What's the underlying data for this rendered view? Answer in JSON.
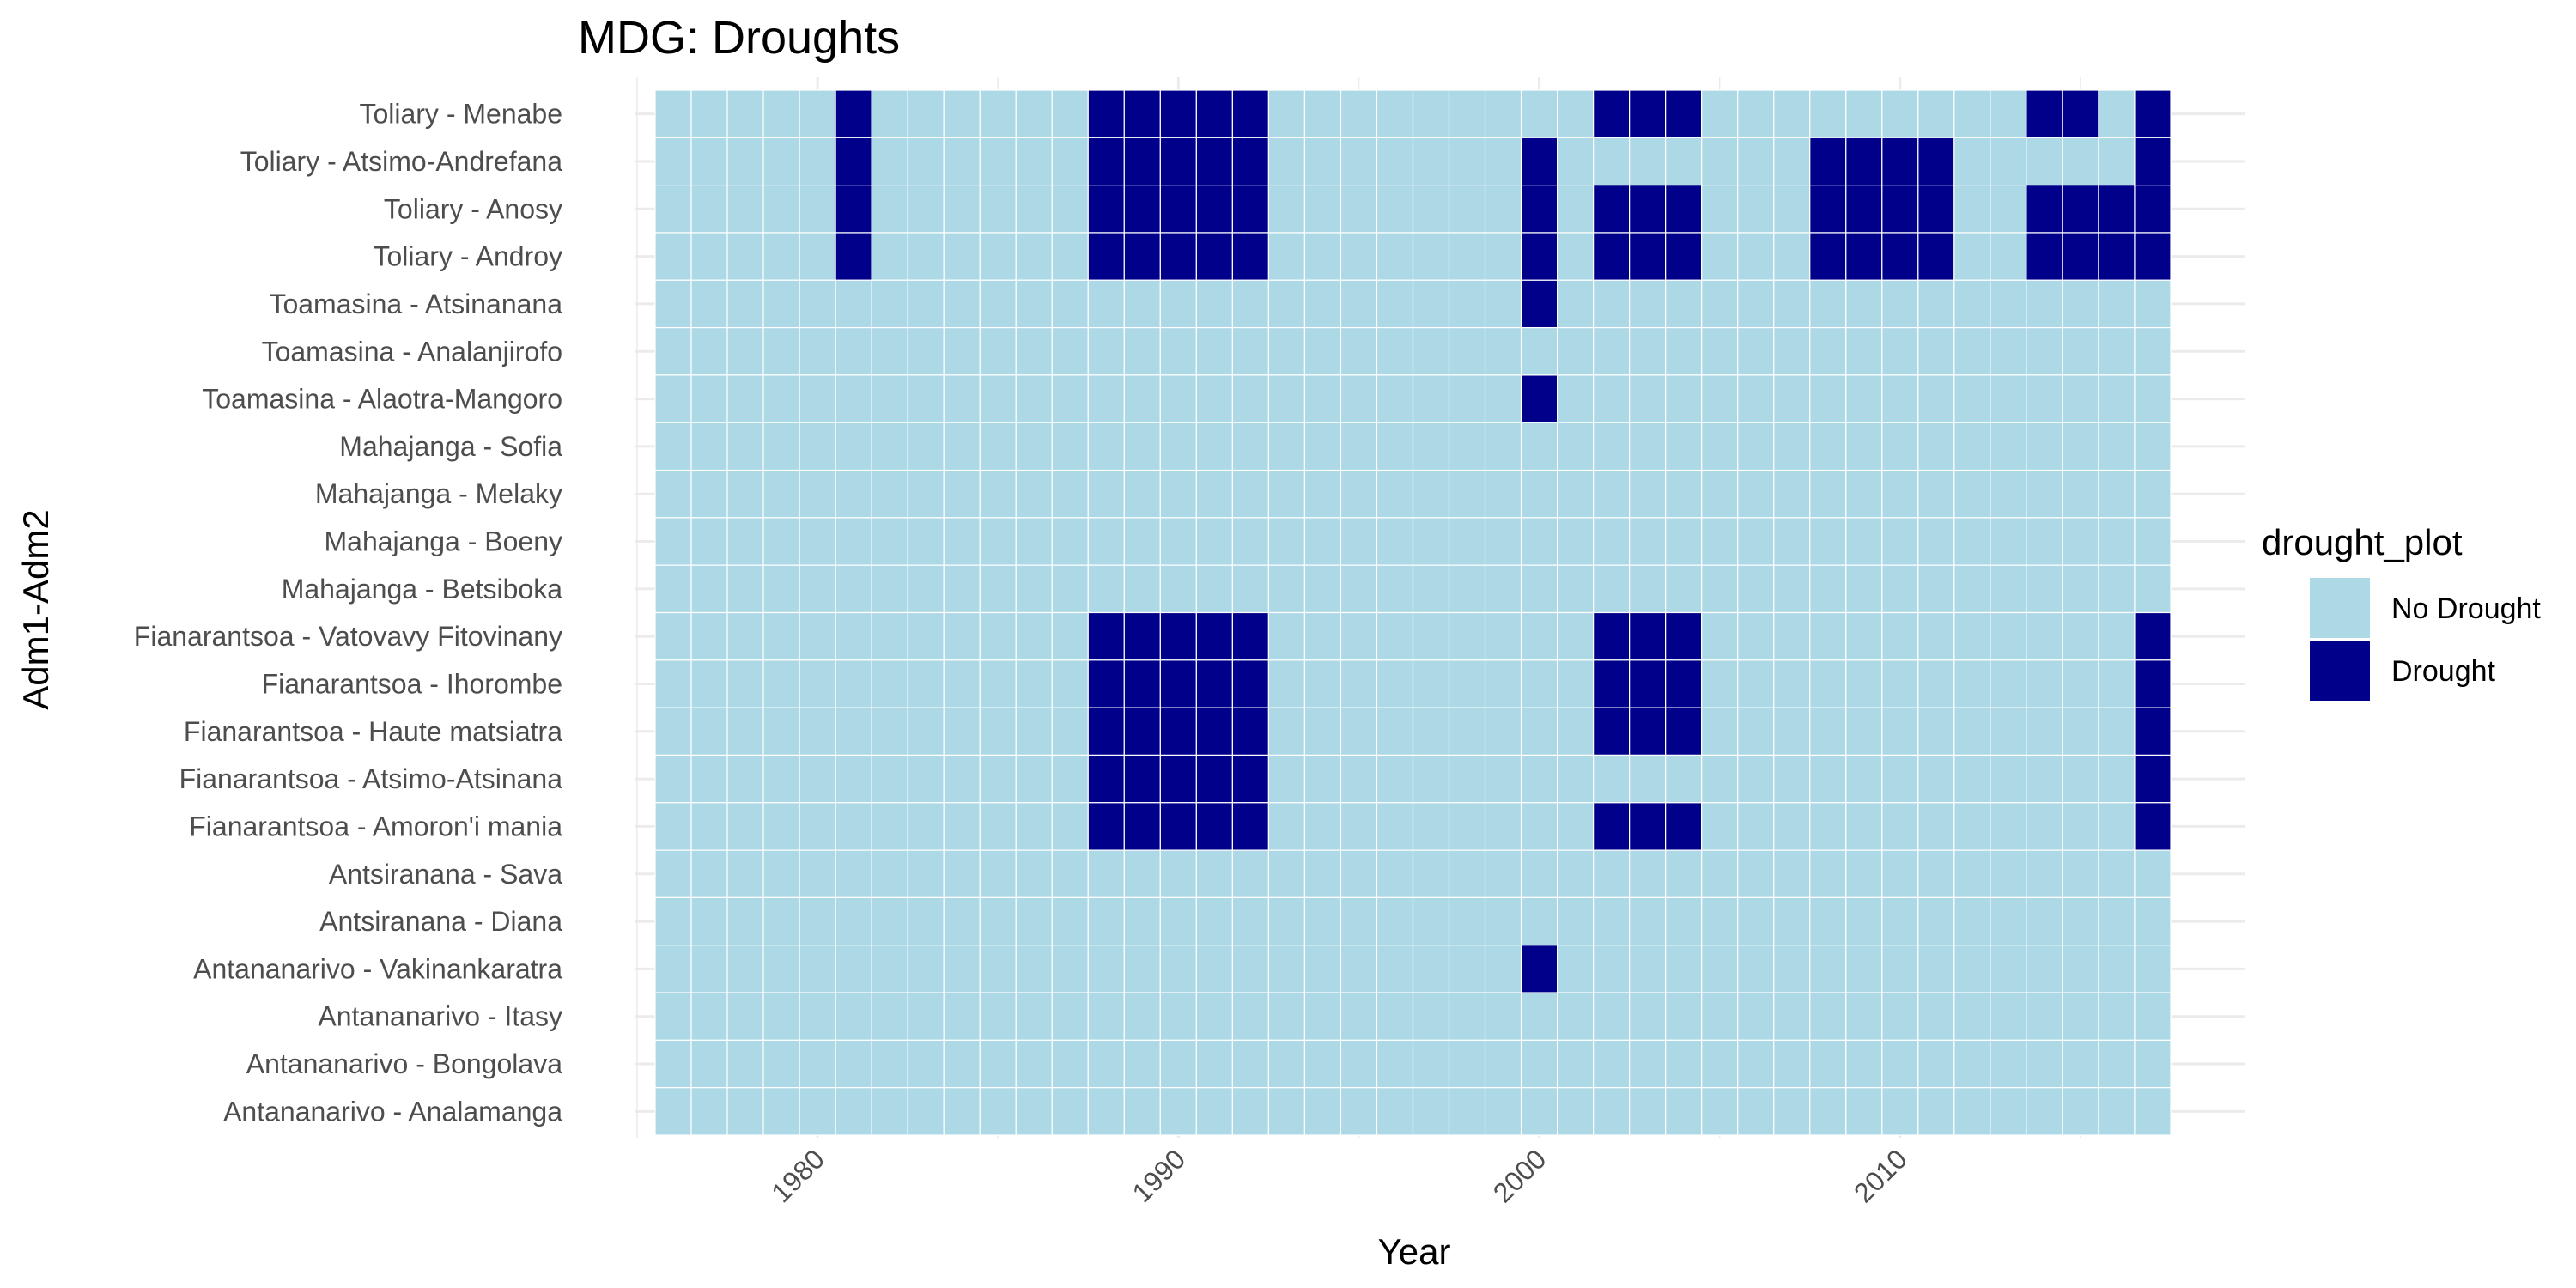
{
  "chart_data": {
    "type": "heatmap",
    "title": "MDG: Droughts",
    "xlabel": "Year",
    "ylabel": "Adm1-Adm2",
    "x_range": [
      1976,
      2017
    ],
    "x_ticks": [
      1980,
      1990,
      2000,
      2010
    ],
    "grid": true,
    "legend": {
      "title": "drought_plot",
      "position": "right",
      "entries": [
        {
          "label": "No Drought",
          "color": "#add8e6"
        },
        {
          "label": "Drought",
          "color": "#00008b"
        }
      ]
    },
    "rows": [
      {
        "label": "Toliary - Menabe",
        "drought_years": [
          1981,
          1988,
          1989,
          1990,
          1991,
          1992,
          2002,
          2003,
          2004,
          2014,
          2015,
          2017
        ]
      },
      {
        "label": "Toliary - Atsimo-Andrefana",
        "drought_years": [
          1981,
          1988,
          1989,
          1990,
          1991,
          1992,
          2000,
          2008,
          2009,
          2010,
          2011,
          2017
        ]
      },
      {
        "label": "Toliary - Anosy",
        "drought_years": [
          1981,
          1988,
          1989,
          1990,
          1991,
          1992,
          2000,
          2002,
          2003,
          2004,
          2008,
          2009,
          2010,
          2011,
          2014,
          2015,
          2016,
          2017
        ]
      },
      {
        "label": "Toliary - Androy",
        "drought_years": [
          1981,
          1988,
          1989,
          1990,
          1991,
          1992,
          2000,
          2002,
          2003,
          2004,
          2008,
          2009,
          2010,
          2011,
          2014,
          2015,
          2016,
          2017
        ]
      },
      {
        "label": "Toamasina - Atsinanana",
        "drought_years": [
          2000
        ]
      },
      {
        "label": "Toamasina - Analanjirofo",
        "drought_years": []
      },
      {
        "label": "Toamasina - Alaotra-Mangoro",
        "drought_years": [
          2000
        ]
      },
      {
        "label": "Mahajanga - Sofia",
        "drought_years": []
      },
      {
        "label": "Mahajanga - Melaky",
        "drought_years": []
      },
      {
        "label": "Mahajanga - Boeny",
        "drought_years": []
      },
      {
        "label": "Mahajanga - Betsiboka",
        "drought_years": []
      },
      {
        "label": "Fianarantsoa - Vatovavy Fitovinany",
        "drought_years": [
          1988,
          1989,
          1990,
          1991,
          1992,
          2002,
          2003,
          2004,
          2017
        ]
      },
      {
        "label": "Fianarantsoa - Ihorombe",
        "drought_years": [
          1988,
          1989,
          1990,
          1991,
          1992,
          2002,
          2003,
          2004,
          2017
        ]
      },
      {
        "label": "Fianarantsoa - Haute matsiatra",
        "drought_years": [
          1988,
          1989,
          1990,
          1991,
          1992,
          2002,
          2003,
          2004,
          2017
        ]
      },
      {
        "label": "Fianarantsoa - Atsimo-Atsinana",
        "drought_years": [
          1988,
          1989,
          1990,
          1991,
          1992,
          2017
        ]
      },
      {
        "label": "Fianarantsoa - Amoron'i mania",
        "drought_years": [
          1988,
          1989,
          1990,
          1991,
          1992,
          2002,
          2003,
          2004,
          2017
        ]
      },
      {
        "label": "Antsiranana - Sava",
        "drought_years": []
      },
      {
        "label": "Antsiranana - Diana",
        "drought_years": []
      },
      {
        "label": "Antananarivo - Vakinankaratra",
        "drought_years": [
          2000
        ]
      },
      {
        "label": "Antananarivo - Itasy",
        "drought_years": []
      },
      {
        "label": "Antananarivo - Bongolava",
        "drought_years": []
      },
      {
        "label": "Antananarivo - Analamanga",
        "drought_years": []
      }
    ]
  }
}
